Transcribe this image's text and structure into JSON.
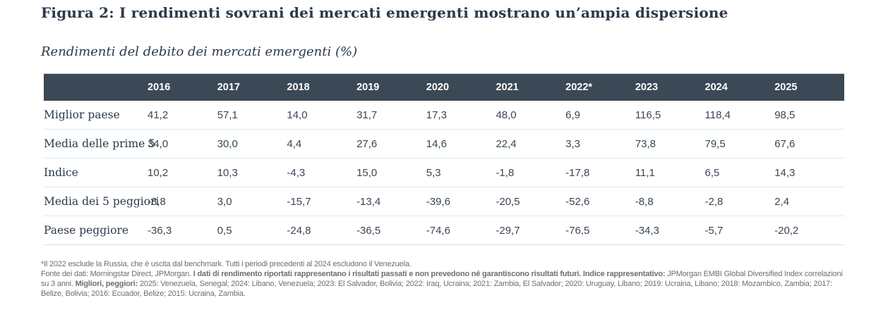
{
  "title": "Figura 2: I rendimenti sovrani dei mercati emergenti mostrano un’ampia dispersione",
  "subtitle": "Rendimenti del debito dei mercati emergenti (%)",
  "table": {
    "columns": [
      "2016",
      "2017",
      "2018",
      "2019",
      "2020",
      "2021",
      "2022*",
      "2023",
      "2024",
      "2025"
    ],
    "rows": [
      {
        "label": "Miglior paese",
        "values": [
          "41,2",
          "57,1",
          "14,0",
          "31,7",
          "17,3",
          "48,0",
          "6,9",
          "116,5",
          "118,4",
          "98,5"
        ]
      },
      {
        "label": "Media delle prime 5",
        "values": [
          "34,0",
          "30,0",
          "4,4",
          "27,6",
          "14,6",
          "22,4",
          "3,3",
          "73,8",
          "79,5",
          "67,6"
        ]
      },
      {
        "label": "Indice",
        "values": [
          "10,2",
          "10,3",
          "-4,3",
          "15,0",
          "5,3",
          "-1,8",
          "-17,8",
          "11,1",
          "6,5",
          "14,3"
        ]
      },
      {
        "label": "Media dei 5 peggiori",
        "values": [
          "-8,8",
          "3,0",
          "-15,7",
          "-13,4",
          "-39,6",
          "-20,5",
          "-52,6",
          "-8,8",
          "-2,8",
          "2,4"
        ]
      },
      {
        "label": "Paese peggiore",
        "values": [
          "-36,3",
          "0,5",
          "-24,8",
          "-36,5",
          "-74,6",
          "-29,7",
          "-76,5",
          "-34,3",
          "-5,7",
          "-20,2"
        ]
      }
    ]
  },
  "footnotes": {
    "asterisk_note": "*Il 2022 esclude la Russia, che è uscita dal benchmark. Tutti i periodi precedenti al 2024 escludono il Venezuela.",
    "source_segments": [
      {
        "text": "Fonte dei dati: Morningstar Direct, JPMorgan. ",
        "bold": false
      },
      {
        "text": "I dati di rendimento riportati rappresentano i risultati passati e non prevedono né garantiscono risultati futuri. Indice rappresentativo: ",
        "bold": true
      },
      {
        "text": "JPMorgan EMBI Global Diversified Index correlazioni su 3 anni. ",
        "bold": false
      },
      {
        "text": "Migliori, peggiori: ",
        "bold": true
      },
      {
        "text": "2025: Venezuela, Senegal; 2024: Libano, Venezuela; 2023: El Salvador, Bolivia; 2022: Iraq, Ucraina; 2021: Zambia, El Salvador; 2020: Uruguay, Libano; 2019: Ucraina, Libano; 2018: Mozambico, Zambia; 2017: Belize, Bolivia; 2016: Ecuador, Belize; 2015: Ucraina, Zambia.",
        "bold": false
      }
    ]
  },
  "colors": {
    "header_bg": "#3b4855",
    "header_text": "#ffffff",
    "title_text": "#2c3a4a",
    "body_text": "#3a4654",
    "row_divider": "#d9ecf3",
    "table_bottom_border": "#d9d9d9",
    "footnote_text": "#6e6e6e"
  }
}
